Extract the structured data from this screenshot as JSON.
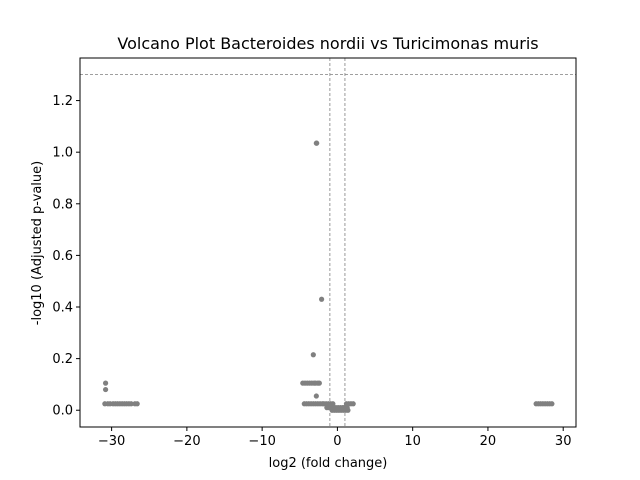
{
  "chart_data": {
    "type": "scatter",
    "title": "Volcano Plot Bacteroides nordii vs Turicimonas muris",
    "xlabel": "log2 (fold change)",
    "ylabel": "-log10 (Adjusted p-value)",
    "xlim": [
      -34.2,
      31.7
    ],
    "ylim": [
      -0.065,
      1.365
    ],
    "x_ticks": [
      -30,
      -20,
      -10,
      0,
      10,
      20,
      30
    ],
    "x_tick_labels": [
      "−30",
      "−20",
      "−10",
      "0",
      "10",
      "20",
      "30"
    ],
    "y_ticks": [
      0.0,
      0.2,
      0.4,
      0.6,
      0.8,
      1.0,
      1.2
    ],
    "y_tick_labels": [
      "0.0",
      "0.2",
      "0.4",
      "0.6",
      "0.8",
      "1.0",
      "1.2"
    ],
    "grid": false,
    "legend": "none",
    "point_color": "#808080",
    "reference_lines": {
      "horizontal_y": 1.30103,
      "vertical_x": [
        -1,
        1
      ],
      "color": "#808080",
      "style": "dashed"
    },
    "series": [
      {
        "x": [
          -2.8,
          -2.75,
          -2.1,
          -3.2,
          -4.6,
          -4.3,
          -4.0,
          -3.7,
          -3.4,
          -3.1,
          -2.9,
          -2.6,
          -2.4,
          -2.8,
          -30.8,
          -30.8,
          -30.9,
          -30.5,
          -30.2,
          -29.8,
          -29.5,
          -29.2,
          -28.9,
          -28.6,
          -28.3,
          -28.0,
          -27.7,
          -27.4,
          -26.9,
          -26.6,
          -4.4,
          -4.1,
          -3.8,
          -3.5,
          -3.2,
          -2.9,
          -2.6,
          -2.3,
          -2.0,
          -1.8,
          -1.5,
          -1.2,
          -0.9,
          -0.6,
          -1.4,
          -1.1,
          -0.8,
          -0.5,
          -0.2,
          0.1,
          0.4,
          0.7,
          0.9,
          -0.7,
          -0.4,
          -0.1,
          0.2,
          0.5,
          0.8,
          1.1,
          1.4,
          1.3,
          1.2,
          1.5,
          1.8,
          2.1,
          26.4,
          26.7,
          27.0,
          27.3,
          27.6,
          27.9,
          28.2,
          28.5
        ],
        "y": [
          1.035,
          1.035,
          0.43,
          0.215,
          0.105,
          0.105,
          0.105,
          0.105,
          0.105,
          0.105,
          0.105,
          0.105,
          0.105,
          0.055,
          0.105,
          0.08,
          0.025,
          0.025,
          0.025,
          0.025,
          0.025,
          0.025,
          0.025,
          0.025,
          0.025,
          0.025,
          0.025,
          0.025,
          0.025,
          0.025,
          0.025,
          0.025,
          0.025,
          0.025,
          0.025,
          0.025,
          0.025,
          0.025,
          0.025,
          0.025,
          0.025,
          0.025,
          0.025,
          0.025,
          0.01,
          0.01,
          0.01,
          0.01,
          0.01,
          0.01,
          0.01,
          0.01,
          0.01,
          0.0,
          0.0,
          0.0,
          0.0,
          0.0,
          0.0,
          0.0,
          0.0,
          0.01,
          0.025,
          0.025,
          0.025,
          0.025,
          0.025,
          0.025,
          0.025,
          0.025,
          0.025,
          0.025,
          0.025,
          0.025
        ]
      }
    ]
  }
}
